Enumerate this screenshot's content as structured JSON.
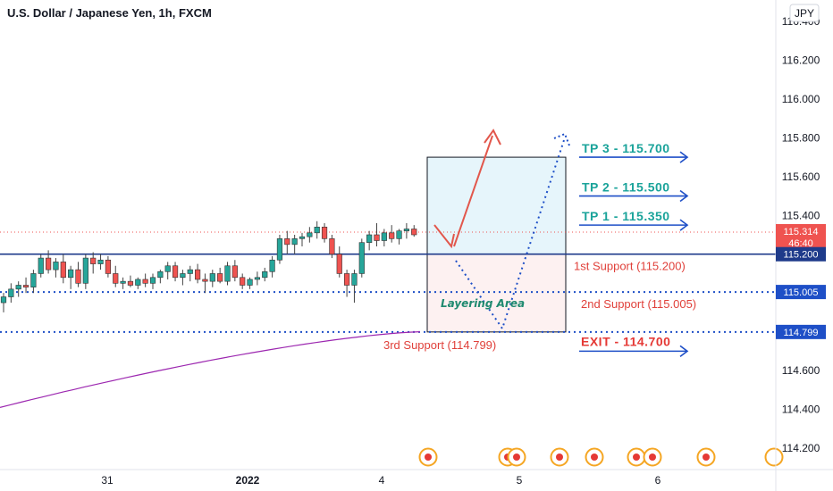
{
  "header": {
    "title": "U.S. Dollar / Japanese Yen, 1h, FXCM",
    "currency_button": "JPY"
  },
  "chart_data": {
    "type": "candlestick",
    "title": "U.S. Dollar / Japanese Yen, 1h, FXCM",
    "y_ticks": [
      "116.400",
      "116.200",
      "116.000",
      "115.800",
      "115.600",
      "115.400",
      "115.200",
      "115.000",
      "114.800",
      "114.600",
      "114.400",
      "114.200"
    ],
    "ylim": [
      114.12,
      116.47
    ],
    "x_ticks": [
      "31",
      "2022",
      "4",
      "5",
      "6"
    ],
    "price_labels": [
      {
        "price": "115.314",
        "sub": "46:40",
        "value": 115.314,
        "color": "#ef5350"
      },
      {
        "price": "115.200",
        "value": 115.2,
        "color": "#1e3a8a"
      },
      {
        "price": "115.005",
        "value": 115.005,
        "color": "#1e4fc7"
      },
      {
        "price": "114.799",
        "value": 114.799,
        "color": "#1e4fc7"
      }
    ],
    "candles": [
      [
        114.95,
        115.0,
        114.9,
        114.98
      ],
      [
        114.98,
        115.05,
        114.95,
        115.02
      ],
      [
        115.02,
        115.06,
        114.98,
        115.04
      ],
      [
        115.04,
        115.08,
        115.0,
        115.03
      ],
      [
        115.03,
        115.12,
        115.0,
        115.1
      ],
      [
        115.1,
        115.2,
        115.08,
        115.18
      ],
      [
        115.18,
        115.22,
        115.1,
        115.12
      ],
      [
        115.12,
        115.18,
        115.08,
        115.16
      ],
      [
        115.16,
        115.2,
        115.05,
        115.08
      ],
      [
        115.08,
        115.14,
        115.02,
        115.12
      ],
      [
        115.12,
        115.16,
        115.03,
        115.05
      ],
      [
        115.05,
        115.2,
        115.02,
        115.18
      ],
      [
        115.18,
        115.21,
        115.1,
        115.15
      ],
      [
        115.15,
        115.2,
        115.12,
        115.17
      ],
      [
        115.17,
        115.19,
        115.08,
        115.1
      ],
      [
        115.1,
        115.14,
        115.03,
        115.05
      ],
      [
        115.05,
        115.08,
        115.02,
        115.06
      ],
      [
        115.06,
        115.09,
        115.03,
        115.04
      ],
      [
        115.04,
        115.08,
        115.02,
        115.07
      ],
      [
        115.07,
        115.1,
        115.03,
        115.05
      ],
      [
        115.05,
        115.1,
        115.02,
        115.08
      ],
      [
        115.08,
        115.12,
        115.05,
        115.11
      ],
      [
        115.11,
        115.16,
        115.07,
        115.14
      ],
      [
        115.14,
        115.16,
        115.06,
        115.08
      ],
      [
        115.08,
        115.12,
        115.04,
        115.1
      ],
      [
        115.1,
        115.14,
        115.06,
        115.12
      ],
      [
        115.12,
        115.15,
        115.05,
        115.07
      ],
      [
        115.07,
        115.1,
        115.0,
        115.06
      ],
      [
        115.06,
        115.12,
        115.03,
        115.1
      ],
      [
        115.1,
        115.13,
        115.05,
        115.06
      ],
      [
        115.06,
        115.16,
        115.04,
        115.14
      ],
      [
        115.14,
        115.17,
        115.06,
        115.08
      ],
      [
        115.08,
        115.1,
        115.02,
        115.04
      ],
      [
        115.04,
        115.08,
        115.02,
        115.07
      ],
      [
        115.07,
        115.11,
        115.04,
        115.08
      ],
      [
        115.08,
        115.13,
        115.06,
        115.11
      ],
      [
        115.11,
        115.19,
        115.08,
        115.17
      ],
      [
        115.17,
        115.3,
        115.15,
        115.28
      ],
      [
        115.28,
        115.32,
        115.2,
        115.25
      ],
      [
        115.25,
        115.3,
        115.2,
        115.28
      ],
      [
        115.28,
        115.31,
        115.24,
        115.29
      ],
      [
        115.29,
        115.34,
        115.26,
        115.31
      ],
      [
        115.31,
        115.37,
        115.28,
        115.34
      ],
      [
        115.34,
        115.36,
        115.26,
        115.28
      ],
      [
        115.28,
        115.3,
        115.18,
        115.2
      ],
      [
        115.2,
        115.24,
        115.08,
        115.1
      ],
      [
        115.1,
        115.12,
        114.98,
        115.04
      ],
      [
        115.04,
        115.12,
        114.95,
        115.1
      ],
      [
        115.1,
        115.28,
        115.08,
        115.26
      ],
      [
        115.26,
        115.32,
        115.22,
        115.3
      ],
      [
        115.3,
        115.36,
        115.24,
        115.27
      ],
      [
        115.27,
        115.33,
        115.24,
        115.31
      ],
      [
        115.31,
        115.35,
        115.26,
        115.28
      ],
      [
        115.28,
        115.33,
        115.25,
        115.32
      ],
      [
        115.32,
        115.36,
        115.28,
        115.33
      ],
      [
        115.33,
        115.35,
        115.29,
        115.3
      ]
    ],
    "ma_line": {
      "color": "#9c27b0",
      "from": 114.41,
      "to": 114.8
    },
    "zones": [
      {
        "name": "take-profit-zone",
        "from": 115.2,
        "to": 115.7,
        "color": "#e6f5fb"
      },
      {
        "name": "layering-zone",
        "from": 114.8,
        "to": 115.2,
        "color": "#fdf1f1"
      }
    ],
    "levels": [
      {
        "name": "1st-support-line",
        "value": 115.2,
        "style": "solid",
        "color": "#1e3a8a"
      },
      {
        "name": "2nd-support-line",
        "value": 115.005,
        "style": "dotted",
        "color": "#1e4fc7"
      },
      {
        "name": "3rd-support-line",
        "value": 114.799,
        "style": "dotted",
        "color": "#1e4fc7"
      }
    ],
    "annotations": {
      "tp3": "TP 3 - 115.700",
      "tp2": "TP 2 - 115.500",
      "tp1": "TP 1 - 115.350",
      "exit": "EXIT - 114.700",
      "support1": "1st Support (115.200)",
      "support2": "2nd Support (115.005)",
      "support3": "3rd Support (114.799)",
      "layering": "Layering Area"
    },
    "event_markers": [
      {
        "name": "us-event-icon"
      },
      {
        "name": "us-event-icon"
      },
      {
        "name": "us-event-icon"
      },
      {
        "name": "us-event-icon"
      },
      {
        "name": "us-event-icon"
      },
      {
        "name": "us-event-icon"
      },
      {
        "name": "us-event-icon"
      },
      {
        "name": "us-event-icon"
      }
    ]
  }
}
